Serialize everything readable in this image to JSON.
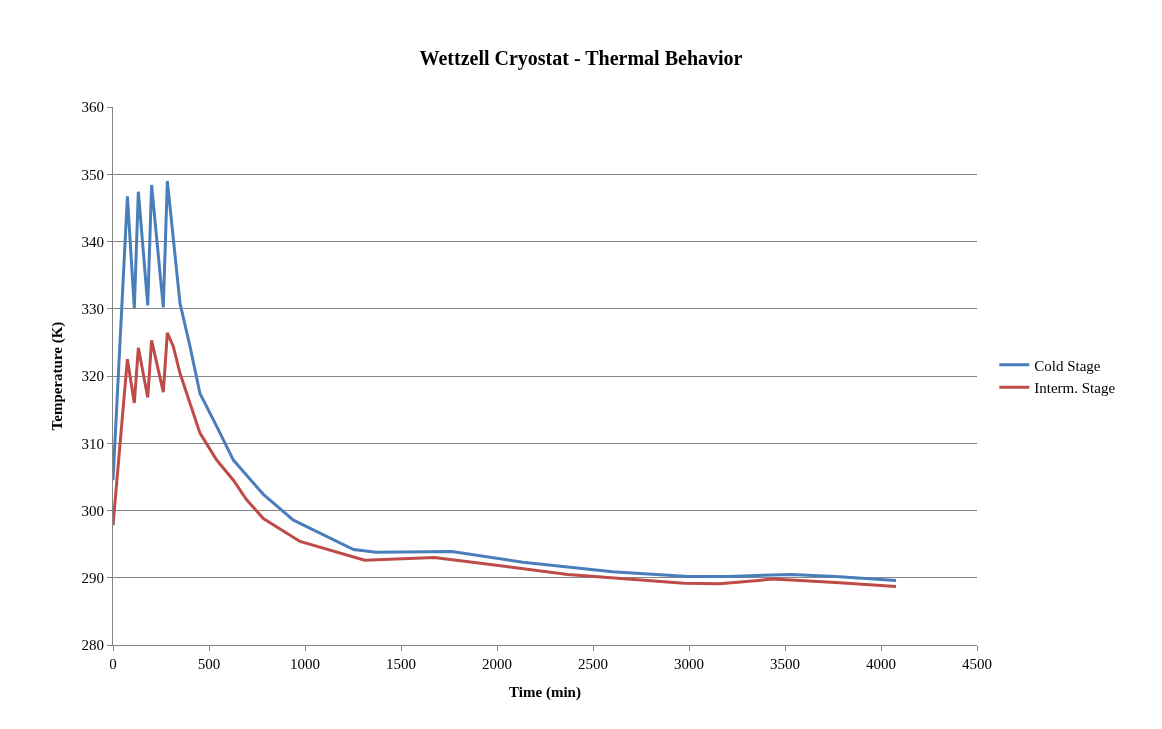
{
  "chart_data": {
    "type": "line",
    "title": "Wettzell Cryostat - Thermal Behavior",
    "xlabel": "Time (min)",
    "ylabel": "Temperature (K)",
    "xlim": [
      0,
      4500
    ],
    "xticks": [
      0,
      500,
      1000,
      1500,
      2000,
      2500,
      3000,
      3500,
      4000,
      4500
    ],
    "ylim": [
      280,
      360
    ],
    "yticks": [
      280,
      290,
      300,
      310,
      320,
      330,
      340,
      350,
      360
    ],
    "grid": "y",
    "legend": "right",
    "marker": "none",
    "line_style": "solid",
    "series": [
      {
        "name": "Cold Stage",
        "color": "#4a7ebb",
        "x": [
          0,
          75,
          111,
          132,
          181,
          201,
          262,
          283,
          349,
          401,
          453,
          540,
          627,
          783,
          938,
          974,
          1253,
          1370,
          1765,
          2135,
          2601,
          2995,
          3206,
          3532,
          3764,
          4078
        ],
        "values": [
          304.5,
          346.7,
          330.1,
          347.4,
          330.5,
          348.4,
          330.2,
          349.0,
          330.8,
          324.4,
          317.4,
          312.5,
          307.5,
          302.4,
          298.6,
          298.1,
          294.2,
          293.8,
          293.9,
          292.3,
          290.9,
          290.2,
          290.2,
          290.5,
          290.2,
          289.6
        ]
      },
      {
        "name": "Interm. Stage",
        "color": "#be4b48",
        "x": [
          0,
          75,
          111,
          132,
          181,
          201,
          262,
          283,
          314,
          349,
          453,
          540,
          627,
          696,
          783,
          974,
          1311,
          1672,
          1904,
          2369,
          2975,
          3160,
          3437,
          3764,
          4078
        ],
        "values": [
          297.8,
          322.5,
          316.0,
          324.2,
          316.8,
          325.3,
          317.6,
          326.4,
          324.4,
          320.4,
          311.5,
          307.5,
          304.5,
          301.6,
          298.8,
          295.4,
          292.6,
          293.0,
          292.2,
          290.5,
          289.2,
          289.1,
          289.8,
          289.3,
          288.7
        ]
      }
    ]
  }
}
